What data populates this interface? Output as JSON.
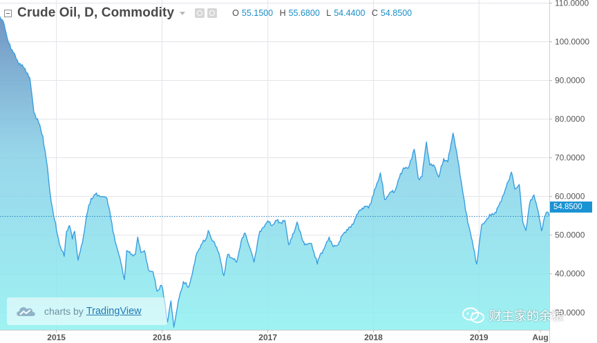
{
  "header": {
    "title": "Crude Oil, D, Commodity",
    "ohlc": [
      {
        "key": "O",
        "value": "55.1500"
      },
      {
        "key": "H",
        "value": "55.6800"
      },
      {
        "key": "L",
        "value": "54.4400"
      },
      {
        "key": "C",
        "value": "54.8500"
      }
    ]
  },
  "branding": {
    "prefix": "charts by",
    "name": "TradingView"
  },
  "watermark": {
    "text": "财主家的余粮",
    "icon": "wechat-icon"
  },
  "colors": {
    "line": "#3a9ee0",
    "area_top": "#6a8fbf",
    "area_bottom": "#8ef0f0",
    "axis_text": "#555555",
    "grid": "#e3e3ea",
    "price_tag": "#1a93d3"
  },
  "chart_data": {
    "type": "area",
    "title": "Crude Oil, D, Commodity",
    "xlabel": "",
    "ylabel": "",
    "x_tick_labels": [
      "2015",
      "2016",
      "2017",
      "2018",
      "2019",
      "Aug"
    ],
    "x_ticks": [
      "2015-01-01",
      "2016-01-01",
      "2017-01-01",
      "2018-01-01",
      "2019-01-01",
      "2019-08-01"
    ],
    "y_tick_labels": [
      "30.0000",
      "40.0000",
      "50.0000",
      "60.0000",
      "70.0000",
      "80.0000",
      "90.0000",
      "100.0000",
      "110.0000"
    ],
    "ylim": [
      25.5,
      110.8
    ],
    "xlim": [
      "2014-06-20",
      "2019-09-01"
    ],
    "grid": true,
    "last_price": "54.8500",
    "series": [
      {
        "values": [
          [
            "2014-06-20",
            106.5
          ],
          [
            "2014-07-01",
            105.3
          ],
          [
            "2014-07-15",
            100.9
          ],
          [
            "2014-08-01",
            97.9
          ],
          [
            "2014-08-15",
            95.6
          ],
          [
            "2014-09-01",
            93.8
          ],
          [
            "2014-09-15",
            93.0
          ],
          [
            "2014-10-01",
            90.7
          ],
          [
            "2014-10-15",
            81.8
          ],
          [
            "2014-11-01",
            79.0
          ],
          [
            "2014-11-15",
            75.6
          ],
          [
            "2014-12-01",
            67.5
          ],
          [
            "2014-12-10",
            60.9
          ],
          [
            "2014-12-22",
            55.3
          ],
          [
            "2015-01-05",
            50.0
          ],
          [
            "2015-01-15",
            47.0
          ],
          [
            "2015-01-28",
            44.5
          ],
          [
            "2015-02-05",
            51.0
          ],
          [
            "2015-02-15",
            52.5
          ],
          [
            "2015-02-25",
            49.0
          ],
          [
            "2015-03-05",
            51.0
          ],
          [
            "2015-03-17",
            43.5
          ],
          [
            "2015-04-01",
            48.0
          ],
          [
            "2015-04-15",
            55.0
          ],
          [
            "2015-05-01",
            59.5
          ],
          [
            "2015-05-15",
            60.5
          ],
          [
            "2015-06-01",
            60.0
          ],
          [
            "2015-06-15",
            60.0
          ],
          [
            "2015-06-25",
            59.5
          ],
          [
            "2015-07-05",
            56.0
          ],
          [
            "2015-07-15",
            51.0
          ],
          [
            "2015-08-01",
            46.0
          ],
          [
            "2015-08-15",
            42.0
          ],
          [
            "2015-08-24",
            38.5
          ],
          [
            "2015-09-01",
            46.0
          ],
          [
            "2015-09-15",
            45.0
          ],
          [
            "2015-10-01",
            45.0
          ],
          [
            "2015-10-09",
            49.5
          ],
          [
            "2015-10-20",
            45.5
          ],
          [
            "2015-11-01",
            46.0
          ],
          [
            "2015-11-15",
            41.0
          ],
          [
            "2015-12-01",
            40.5
          ],
          [
            "2015-12-15",
            35.5
          ],
          [
            "2015-12-31",
            37.0
          ],
          [
            "2016-01-10",
            33.0
          ],
          [
            "2016-01-20",
            27.5
          ],
          [
            "2016-02-01",
            33.0
          ],
          [
            "2016-02-11",
            26.2
          ],
          [
            "2016-02-20",
            30.0
          ],
          [
            "2016-03-01",
            34.0
          ],
          [
            "2016-03-15",
            38.0
          ],
          [
            "2016-04-01",
            36.5
          ],
          [
            "2016-04-15",
            40.0
          ],
          [
            "2016-05-01",
            45.5
          ],
          [
            "2016-05-15",
            47.5
          ],
          [
            "2016-06-01",
            49.0
          ],
          [
            "2016-06-09",
            51.2
          ],
          [
            "2016-06-20",
            49.0
          ],
          [
            "2016-07-01",
            48.0
          ],
          [
            "2016-07-15",
            45.5
          ],
          [
            "2016-08-02",
            39.5
          ],
          [
            "2016-08-15",
            45.0
          ],
          [
            "2016-09-01",
            44.0
          ],
          [
            "2016-09-15",
            43.0
          ],
          [
            "2016-10-01",
            48.5
          ],
          [
            "2016-10-15",
            50.5
          ],
          [
            "2016-11-01",
            46.5
          ],
          [
            "2016-11-14",
            43.0
          ],
          [
            "2016-12-01",
            50.0
          ],
          [
            "2016-12-15",
            52.0
          ],
          [
            "2017-01-01",
            53.7
          ],
          [
            "2017-01-15",
            52.5
          ],
          [
            "2017-02-01",
            53.8
          ],
          [
            "2017-02-15",
            53.2
          ],
          [
            "2017-03-01",
            53.8
          ],
          [
            "2017-03-14",
            47.5
          ],
          [
            "2017-04-01",
            50.5
          ],
          [
            "2017-04-12",
            53.4
          ],
          [
            "2017-05-01",
            48.5
          ],
          [
            "2017-05-15",
            47.5
          ],
          [
            "2017-06-01",
            47.8
          ],
          [
            "2017-06-21",
            42.5
          ],
          [
            "2017-07-01",
            45.0
          ],
          [
            "2017-07-15",
            46.5
          ],
          [
            "2017-08-01",
            49.5
          ],
          [
            "2017-08-15",
            47.0
          ],
          [
            "2017-09-01",
            47.5
          ],
          [
            "2017-09-15",
            49.9
          ],
          [
            "2017-10-01",
            51.5
          ],
          [
            "2017-10-15",
            52.0
          ],
          [
            "2017-11-01",
            54.5
          ],
          [
            "2017-11-15",
            56.5
          ],
          [
            "2017-12-01",
            57.5
          ],
          [
            "2017-12-15",
            57.0
          ],
          [
            "2018-01-01",
            60.4
          ],
          [
            "2018-01-25",
            66.1
          ],
          [
            "2018-02-09",
            59.2
          ],
          [
            "2018-03-01",
            61.2
          ],
          [
            "2018-03-15",
            61.2
          ],
          [
            "2018-04-01",
            64.9
          ],
          [
            "2018-04-15",
            67.4
          ],
          [
            "2018-05-01",
            67.3
          ],
          [
            "2018-05-22",
            72.2
          ],
          [
            "2018-06-05",
            64.7
          ],
          [
            "2018-06-18",
            65.1
          ],
          [
            "2018-07-03",
            74.1
          ],
          [
            "2018-07-15",
            68.1
          ],
          [
            "2018-08-01",
            67.7
          ],
          [
            "2018-08-15",
            65.0
          ],
          [
            "2018-09-01",
            69.8
          ],
          [
            "2018-09-15",
            68.9
          ],
          [
            "2018-10-03",
            76.4
          ],
          [
            "2018-10-15",
            71.8
          ],
          [
            "2018-11-01",
            63.7
          ],
          [
            "2018-11-15",
            56.5
          ],
          [
            "2018-12-01",
            51.0
          ],
          [
            "2018-12-24",
            42.5
          ],
          [
            "2019-01-10",
            52.6
          ],
          [
            "2019-01-25",
            53.7
          ],
          [
            "2019-02-15",
            55.6
          ],
          [
            "2019-03-01",
            55.8
          ],
          [
            "2019-03-15",
            58.5
          ],
          [
            "2019-04-01",
            61.6
          ],
          [
            "2019-04-23",
            66.3
          ],
          [
            "2019-05-05",
            61.9
          ],
          [
            "2019-05-20",
            63.1
          ],
          [
            "2019-06-01",
            53.5
          ],
          [
            "2019-06-12",
            51.2
          ],
          [
            "2019-06-25",
            58.1
          ],
          [
            "2019-07-10",
            60.4
          ],
          [
            "2019-07-25",
            56.0
          ],
          [
            "2019-08-05",
            51.1
          ],
          [
            "2019-08-15",
            54.5
          ],
          [
            "2019-08-25",
            56.0
          ],
          [
            "2019-09-01",
            54.85
          ]
        ]
      }
    ]
  }
}
